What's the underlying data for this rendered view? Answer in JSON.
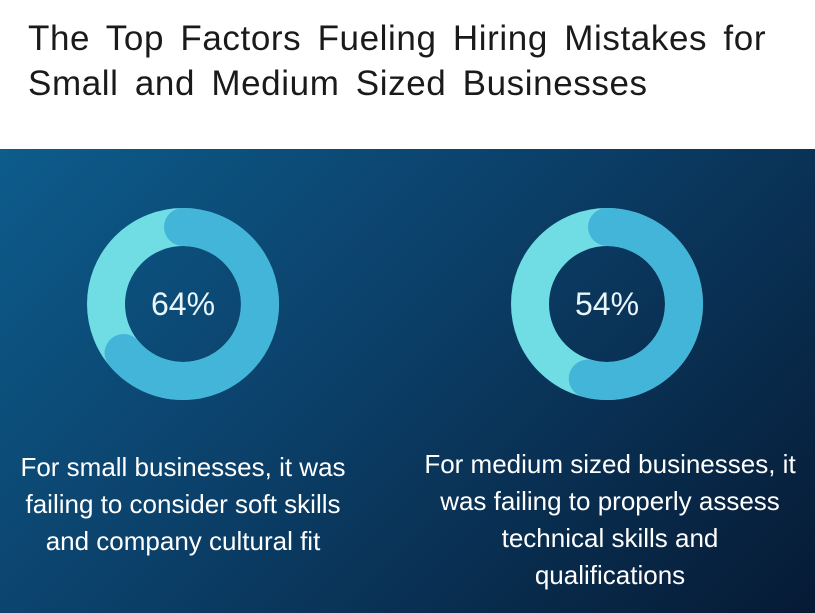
{
  "title": "The Top Factors Fueling Hiring Mistakes for Small and Medium Sized Businesses",
  "colors": {
    "background": "#ffffff",
    "panel_gradient": [
      "#0d5c8c",
      "#061a34"
    ],
    "ring_light": "#6fdde3",
    "ring_dark": "#42b5d9",
    "text_light": "#ffffff"
  },
  "chart_data": [
    {
      "type": "pie",
      "subtype": "donut",
      "title": "",
      "values": [
        64,
        36
      ],
      "center_label": "64%",
      "caption": "For small businesses, it was failing to consider soft skills and company cultural fit",
      "colors": [
        "#42b5d9",
        "#6fdde3"
      ]
    },
    {
      "type": "pie",
      "subtype": "donut",
      "title": "",
      "values": [
        54,
        46
      ],
      "center_label": "54%",
      "caption": "For medium sized businesses, it was failing to properly assess technical skills and qualifications",
      "colors": [
        "#42b5d9",
        "#6fdde3"
      ]
    }
  ]
}
